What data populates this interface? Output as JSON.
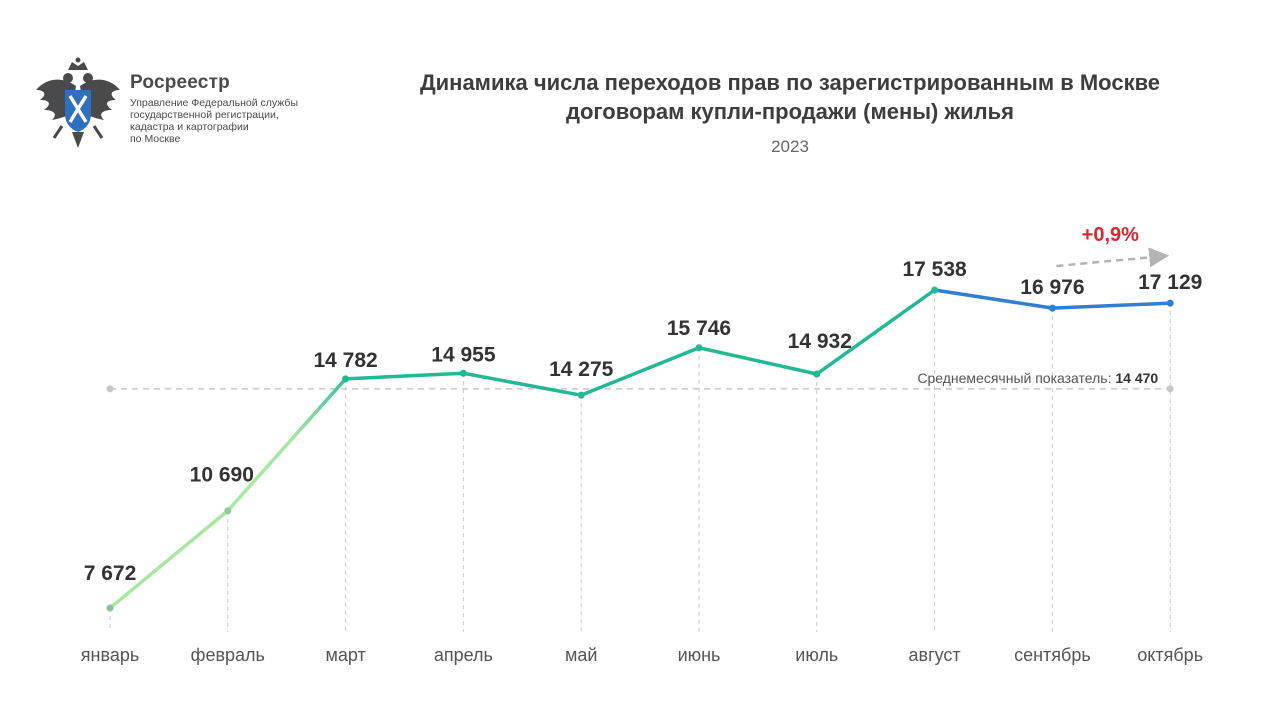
{
  "brand": {
    "name": "Росреестр",
    "lines": [
      "Управление Федеральной службы",
      "государственной регистрации,",
      "кадастра и картографии",
      "по Москве"
    ],
    "logo_icon": "double-headed-eagle-emblem"
  },
  "chart_data": {
    "type": "line",
    "title_lines": [
      "Динамика числа переходов прав по зарегистрированным в Москве",
      "договорам купли-продажи (мены) жилья"
    ],
    "subtitle": "2023",
    "categories": [
      "январь",
      "февраль",
      "март",
      "апрель",
      "май",
      "июнь",
      "июль",
      "август",
      "сентябрь",
      "октябрь"
    ],
    "values": [
      7672,
      10690,
      14782,
      14955,
      14275,
      15746,
      14932,
      17538,
      16976,
      17129
    ],
    "value_labels": [
      "7 672",
      "10 690",
      "14 782",
      "14 955",
      "14 275",
      "15 746",
      "14 932",
      "17 538",
      "16 976",
      "17 129"
    ],
    "average": {
      "value": 14470,
      "label": "Среднемесячный показатель:",
      "value_label": "14 470"
    },
    "change": {
      "label": "+0,9%",
      "from": "сентябрь",
      "to": "октябрь"
    },
    "colors": {
      "line_start": "#a6e8a0",
      "line_mid": "#22b894",
      "line_end": "#2f7fd6",
      "change": "#d9262f",
      "grid": "#c8c8c8",
      "text": "#333333",
      "axis_text": "#555555"
    },
    "grid": "vertical dashed",
    "legend": "none"
  }
}
